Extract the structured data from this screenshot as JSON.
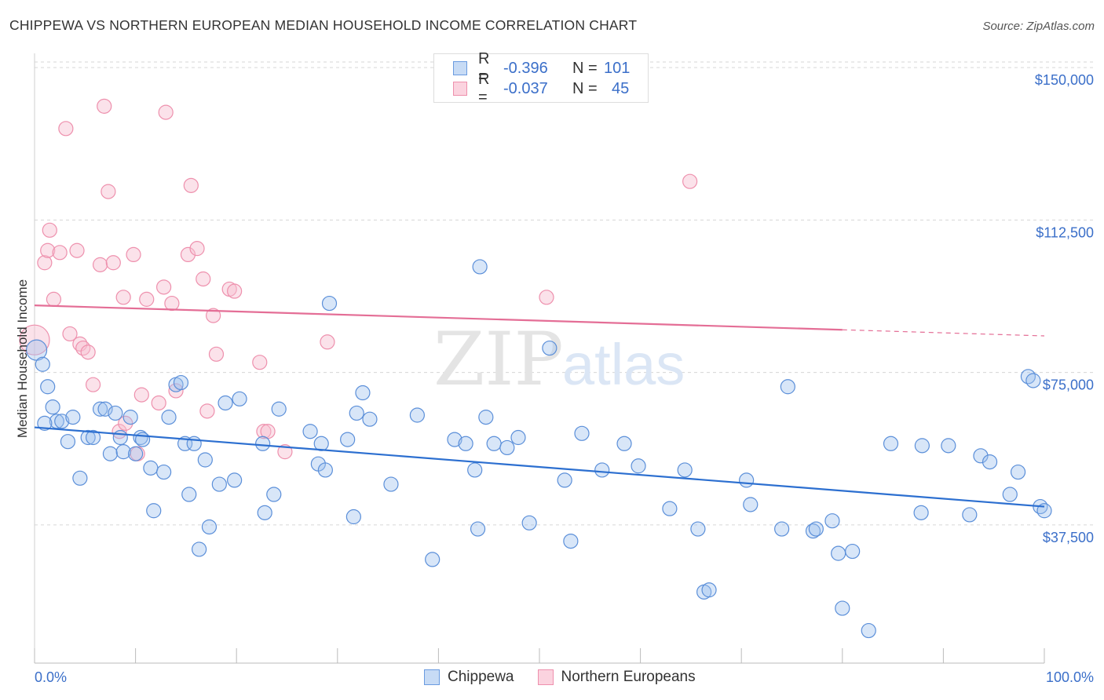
{
  "title": "CHIPPEWA VS NORTHERN EUROPEAN MEDIAN HOUSEHOLD INCOME CORRELATION CHART",
  "source": "Source: ZipAtlas.com",
  "watermark": {
    "zip": "ZIP",
    "atlas": "atlas"
  },
  "legend": {
    "rows": [
      {
        "r_label": "R =",
        "r_value": "-0.396",
        "n_label": "N =",
        "n_value": "101",
        "color": "#9ec1ee",
        "border": "#6a9be0"
      },
      {
        "r_label": "R =",
        "r_value": "-0.037",
        "n_label": "N =",
        "n_value": "45",
        "color": "#f7bfd0",
        "border": "#ee90ad"
      }
    ]
  },
  "bottom_legend": {
    "chippewa": "Chippewa",
    "northern": "Northern Europeans"
  },
  "chart_data": {
    "type": "scatter",
    "xlabel": "",
    "ylabel": "Median Household Income",
    "x_tick_labels": {
      "min": "0.0%",
      "max": "100.0%"
    },
    "y_tick_labels": [
      "$37,500",
      "$75,000",
      "$112,500",
      "$150,000"
    ],
    "y_ticks": [
      37500,
      75000,
      112500,
      150000
    ],
    "xlim": [
      0,
      100
    ],
    "ylim": [
      3500,
      153500
    ],
    "colors": {
      "chippewa": "#5b8fd9",
      "chippewa_line": "#2c6fd0",
      "northern": "#ee90ad",
      "northern_line": "#e46e96",
      "axis_text": "#3b6fc9"
    },
    "series": [
      {
        "name": "Chippewa",
        "trend": {
          "x0": 0,
          "y0": 61500,
          "x1": 100,
          "y1": 42000
        },
        "points": [
          [
            0.2,
            80500
          ],
          [
            0.8,
            77000
          ],
          [
            1.3,
            71500
          ],
          [
            1.8,
            66500
          ],
          [
            2.2,
            63000
          ],
          [
            2.7,
            63000
          ],
          [
            3.3,
            58000
          ],
          [
            3.8,
            64000
          ],
          [
            4.5,
            49000
          ],
          [
            5.3,
            59000
          ],
          [
            5.8,
            59000
          ],
          [
            6.5,
            66000
          ],
          [
            7.0,
            66000
          ],
          [
            7.5,
            55000
          ],
          [
            8.0,
            65000
          ],
          [
            8.5,
            59000
          ],
          [
            8.8,
            55500
          ],
          [
            9.5,
            64000
          ],
          [
            10.0,
            55000
          ],
          [
            10.5,
            59000
          ],
          [
            10.7,
            58500
          ],
          [
            11.5,
            51500
          ],
          [
            11.8,
            41000
          ],
          [
            12.8,
            50500
          ],
          [
            13.3,
            64000
          ],
          [
            14.0,
            72000
          ],
          [
            14.5,
            72500
          ],
          [
            14.9,
            57500
          ],
          [
            15.3,
            45000
          ],
          [
            15.8,
            57500
          ],
          [
            16.3,
            31500
          ],
          [
            16.9,
            53500
          ],
          [
            17.3,
            37000
          ],
          [
            18.3,
            47500
          ],
          [
            18.9,
            67500
          ],
          [
            19.8,
            48500
          ],
          [
            20.3,
            68500
          ],
          [
            22.6,
            57500
          ],
          [
            22.8,
            40500
          ],
          [
            23.7,
            45000
          ],
          [
            24.2,
            66000
          ],
          [
            27.3,
            60500
          ],
          [
            28.1,
            52500
          ],
          [
            28.4,
            57500
          ],
          [
            28.8,
            51000
          ],
          [
            29.2,
            92000
          ],
          [
            31.0,
            58500
          ],
          [
            31.6,
            39500
          ],
          [
            31.9,
            65000
          ],
          [
            32.5,
            70000
          ],
          [
            33.2,
            63500
          ],
          [
            35.3,
            47500
          ],
          [
            37.9,
            64500
          ],
          [
            39.4,
            29000
          ],
          [
            41.6,
            58500
          ],
          [
            42.7,
            57500
          ],
          [
            43.6,
            51000
          ],
          [
            43.9,
            36500
          ],
          [
            44.1,
            101000
          ],
          [
            44.7,
            64000
          ],
          [
            45.5,
            57500
          ],
          [
            46.8,
            56500
          ],
          [
            47.9,
            59000
          ],
          [
            49.0,
            38000
          ],
          [
            51.0,
            81000
          ],
          [
            52.5,
            48500
          ],
          [
            53.1,
            33500
          ],
          [
            54.2,
            60000
          ],
          [
            56.2,
            51000
          ],
          [
            58.4,
            57500
          ],
          [
            59.8,
            52000
          ],
          [
            62.9,
            41500
          ],
          [
            64.4,
            51000
          ],
          [
            65.7,
            36500
          ],
          [
            66.3,
            21000
          ],
          [
            66.8,
            21500
          ],
          [
            70.5,
            48500
          ],
          [
            70.9,
            42500
          ],
          [
            74.0,
            36500
          ],
          [
            74.6,
            71500
          ],
          [
            77.1,
            36000
          ],
          [
            77.4,
            36500
          ],
          [
            79.0,
            38500
          ],
          [
            79.6,
            30500
          ],
          [
            80.0,
            17000
          ],
          [
            81.0,
            31000
          ],
          [
            82.6,
            11500
          ],
          [
            84.8,
            57500
          ],
          [
            87.8,
            40500
          ],
          [
            87.9,
            57000
          ],
          [
            90.5,
            57000
          ],
          [
            92.6,
            40000
          ],
          [
            93.7,
            54500
          ],
          [
            94.6,
            53000
          ],
          [
            96.6,
            45000
          ],
          [
            97.4,
            50500
          ],
          [
            98.4,
            74000
          ],
          [
            98.9,
            73000
          ],
          [
            99.6,
            42000
          ],
          [
            100.0,
            41000
          ],
          [
            1.0,
            62500
          ]
        ]
      },
      {
        "name": "Northern Europeans",
        "trend": {
          "x0": 0,
          "y0": 91500,
          "x1": 80,
          "y1": 85500,
          "x_dash_end": 100,
          "y_dash_end": 84000
        },
        "points": [
          [
            0.0,
            83000
          ],
          [
            1.0,
            102000
          ],
          [
            1.3,
            105000
          ],
          [
            1.5,
            110000
          ],
          [
            1.9,
            93000
          ],
          [
            2.5,
            104500
          ],
          [
            3.1,
            135000
          ],
          [
            3.5,
            84500
          ],
          [
            4.2,
            105000
          ],
          [
            4.5,
            82000
          ],
          [
            4.8,
            81000
          ],
          [
            5.3,
            80000
          ],
          [
            5.8,
            72000
          ],
          [
            6.5,
            101500
          ],
          [
            6.9,
            140500
          ],
          [
            7.3,
            119500
          ],
          [
            7.8,
            102000
          ],
          [
            8.4,
            60500
          ],
          [
            8.8,
            93500
          ],
          [
            9.0,
            62500
          ],
          [
            9.8,
            104000
          ],
          [
            10.2,
            55000
          ],
          [
            10.6,
            69500
          ],
          [
            11.1,
            93000
          ],
          [
            12.3,
            67500
          ],
          [
            12.8,
            96000
          ],
          [
            13.0,
            139000
          ],
          [
            13.6,
            92000
          ],
          [
            14.0,
            70500
          ],
          [
            15.2,
            104000
          ],
          [
            15.5,
            121000
          ],
          [
            16.1,
            105500
          ],
          [
            16.7,
            98000
          ],
          [
            17.1,
            65500
          ],
          [
            17.7,
            89000
          ],
          [
            18.0,
            79500
          ],
          [
            19.3,
            95500
          ],
          [
            19.8,
            95000
          ],
          [
            22.3,
            77500
          ],
          [
            22.7,
            60500
          ],
          [
            23.1,
            60500
          ],
          [
            24.8,
            55500
          ],
          [
            29.0,
            82500
          ],
          [
            50.7,
            93500
          ],
          [
            64.9,
            122000
          ]
        ]
      }
    ]
  }
}
